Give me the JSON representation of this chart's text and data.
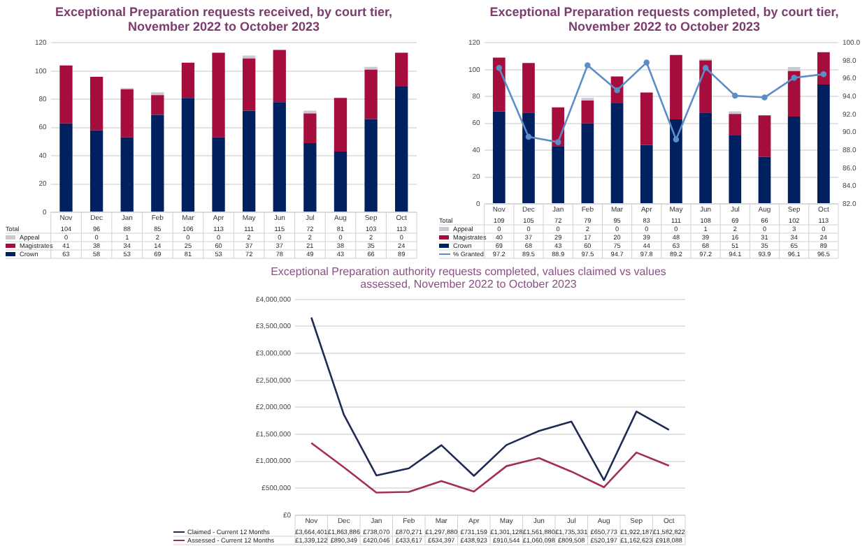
{
  "chart_data": [
    {
      "type": "bar",
      "title": "Exceptional Preparation requests received, by court tier, November 2022 to October 2023",
      "categories": [
        "Nov",
        "Dec",
        "Jan",
        "Feb",
        "Mar",
        "Apr",
        "May",
        "Jun",
        "Jul",
        "Aug",
        "Sep",
        "Oct"
      ],
      "stacked": true,
      "series": [
        {
          "name": "Crown",
          "color": "#002060",
          "values": [
            63,
            58,
            53,
            69,
            81,
            53,
            72,
            78,
            49,
            43,
            66,
            89
          ]
        },
        {
          "name": "Magistrates",
          "color": "#a50d3c",
          "values": [
            41,
            38,
            34,
            14,
            25,
            60,
            37,
            37,
            21,
            38,
            35,
            24
          ]
        },
        {
          "name": "Appeal",
          "color": "#c9c9d3",
          "values": [
            0,
            0,
            1,
            2,
            0,
            0,
            2,
            0,
            2,
            0,
            2,
            0
          ]
        }
      ],
      "totals": [
        "104",
        "96",
        "88",
        "85",
        "106",
        "113",
        "111",
        "115",
        "72",
        "81",
        "103",
        "113"
      ],
      "annotations": [
        "Total"
      ],
      "ylim": [
        0,
        120
      ],
      "yticks": [
        0,
        20,
        40,
        60,
        80,
        100,
        120
      ],
      "grid": "y",
      "legend": "bottom",
      "data_labels": true
    },
    {
      "type": "bar",
      "title": "Exceptional Preparation requests completed, by court tier, November 2022 to October 2023",
      "categories": [
        "Nov",
        "Dec",
        "Jan",
        "Feb",
        "Mar",
        "Apr",
        "May",
        "Jun",
        "Jul",
        "Aug",
        "Sep",
        "Oct"
      ],
      "stacked": true,
      "series": [
        {
          "name": "Crown",
          "color": "#002060",
          "values": [
            69,
            68,
            43,
            60,
            75,
            44,
            63,
            68,
            51,
            35,
            65,
            89
          ]
        },
        {
          "name": "Magistrates",
          "color": "#a50d3c",
          "values": [
            40,
            37,
            29,
            17,
            20,
            39,
            48,
            39,
            16,
            31,
            34,
            24
          ]
        },
        {
          "name": "Appeal",
          "color": "#c9c9d3",
          "values": [
            0,
            0,
            0,
            2,
            0,
            0,
            0,
            1,
            2,
            0,
            3,
            0
          ]
        },
        {
          "name": "% Granted",
          "type": "line",
          "axis": "y2",
          "color": "#5b8ec9",
          "values": [
            97.2,
            89.5,
            88.9,
            97.5,
            94.7,
            97.8,
            89.2,
            97.2,
            94.1,
            93.9,
            96.1,
            96.5
          ]
        }
      ],
      "totals": [
        "109",
        "105",
        "72",
        "79",
        "95",
        "83",
        "111",
        "108",
        "69",
        "66",
        "102",
        "113"
      ],
      "annotations": [
        "Total"
      ],
      "ylim": [
        0,
        120
      ],
      "yticks": [
        0,
        20,
        40,
        60,
        80,
        100,
        120
      ],
      "y2lim": [
        82,
        100
      ],
      "y2ticks": [
        {
          "value": 82,
          "label": "82.0"
        },
        {
          "value": 84,
          "label": "84.0"
        },
        {
          "value": 86,
          "label": "86.0"
        },
        {
          "value": 88,
          "label": "88.0"
        },
        {
          "value": 90,
          "label": "90.0"
        },
        {
          "value": 92,
          "label": "92.0"
        },
        {
          "value": 94,
          "label": "94.0"
        },
        {
          "value": 96,
          "label": "96.0"
        },
        {
          "value": 98,
          "label": "98.0"
        },
        {
          "value": 100,
          "label": "100.0"
        }
      ],
      "grid": "y",
      "legend": "bottom",
      "data_labels": true,
      "marker": "circle"
    },
    {
      "type": "line",
      "title": "Exceptional Preparation authority requests completed, values claimed vs values assessed, November 2022 to October 2023",
      "categories": [
        "Nov",
        "Dec",
        "Jan",
        "Feb",
        "Mar",
        "Apr",
        "May",
        "Jun",
        "Jul",
        "Aug",
        "Sep",
        "Oct"
      ],
      "series": [
        {
          "name": "Claimed - Current 12 Months",
          "color": "#1f2a55",
          "values": [
            3664401,
            1863886,
            738070,
            870271,
            1297880,
            731159,
            1301128,
            1561880,
            1735331,
            650773,
            1922187,
            1582822
          ],
          "value_labels": [
            "£3,664,401",
            "£1,863,886",
            "£738,070",
            "£870,271",
            "£1,297,880",
            "£731,159",
            "£1,301,128",
            "£1,561,880",
            "£1,735,331",
            "£650,773",
            "£1,922,187",
            "£1,582,822"
          ]
        },
        {
          "name": "Assessed - Current 12 Months",
          "color": "#a3304f",
          "values": [
            1339122,
            890349,
            420046,
            433617,
            634397,
            438923,
            910544,
            1060098,
            809508,
            520197,
            1162623,
            918088
          ],
          "value_labels": [
            "£1,339,122",
            "£890,349",
            "£420,046",
            "£433,617",
            "£634,397",
            "£438,923",
            "£910,544",
            "£1,060,098",
            "£809,508",
            "£520,197",
            "£1,162,623",
            "£918,088"
          ]
        }
      ],
      "ylim": [
        0,
        4000000
      ],
      "yticks": [
        {
          "value": 0,
          "label": "£0"
        },
        {
          "value": 500000,
          "label": "£500,000"
        },
        {
          "value": 1000000,
          "label": "£1,000,000"
        },
        {
          "value": 1500000,
          "label": "£1,500,000"
        },
        {
          "value": 2000000,
          "label": "£2,000,000"
        },
        {
          "value": 2500000,
          "label": "£2,500,000"
        },
        {
          "value": 3000000,
          "label": "£3,000,000"
        },
        {
          "value": 3500000,
          "label": "£3,500,000"
        },
        {
          "value": 4000000,
          "label": "£4,000,000"
        }
      ],
      "grid": "y",
      "legend": "bottom",
      "marker": "none"
    }
  ]
}
